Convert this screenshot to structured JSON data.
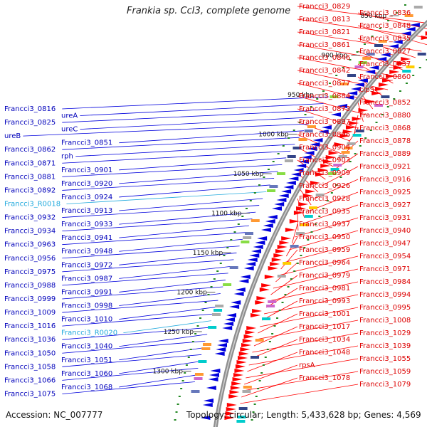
{
  "title": "Frankia sp. CcI3, complete genome",
  "footer": {
    "accession": "Accession: NC_007777",
    "summary": "Topology: circular; Length: 5,433,628 bp; Genes: 4,569"
  },
  "colors": {
    "forward": "#ff0000",
    "reverse": "#0000dd",
    "rna": "#22aadd",
    "tick": "#228822"
  },
  "kbp_ticks": [
    "850 kbp",
    "900 kbp",
    "950 kbp",
    "1000 kbp",
    "1050 kbp",
    "1100 kbp",
    "1150 kbp",
    "1200 kbp",
    "1250 kbp",
    "1300 kbp"
  ],
  "right_labels": [
    "Francci3_0829",
    "Francci3_0836",
    "Francci3_0813",
    "Francci3_0848",
    "Francci3_0821",
    "Francci3_0835",
    "Francci3_0861",
    "Francci3_0827",
    "Francci3_0846",
    "Francci3_0837",
    "Francci3_0842",
    "Francci3_0860",
    "Francci3_0877",
    "clpS",
    "Francci3_0884",
    "Francci3_0852",
    "Francci3_0873",
    "Francci3_0880",
    "Francci3_0897",
    "Francci3_0868",
    "Francci3_0896",
    "Francci3_0878",
    "Francci3_0904",
    "Francci3_0889",
    "Francci3_0903",
    "Francci3_0921",
    "Francci3_0909",
    "Francci3_0916",
    "Francci3_0926",
    "Francci3_0925",
    "Francci3_0928",
    "Francci3_0927",
    "Francci3_0935",
    "Francci3_0931",
    "Francci3_0937",
    "Francci3_0940",
    "Francci3_0950",
    "Francci3_0947",
    "Francci3_0959",
    "Francci3_0954",
    "Francci3_0964",
    "Francci3_0971",
    "Francci3_0979",
    "Francci3_0984",
    "Francci3_0981",
    "Francci3_0994",
    "Francci3_0993",
    "Francci3_0995",
    "Francci3_1001",
    "Francci3_1008",
    "Francci3_1017",
    "Francci3_1029",
    "Francci3_1034",
    "Francci3_1039",
    "Francci3_1048",
    "Francci3_1055",
    "rpsA",
    "Francci3_1059",
    "Francci3_1078",
    "Francci3_1079"
  ],
  "left_labels": [
    "Francci3_0816",
    "ureA",
    "Francci3_0825",
    "ureC",
    "ureB",
    "Francci3_0851",
    "Francci3_0862",
    "rph",
    "Francci3_0871",
    "Francci3_0901",
    "Francci3_0881",
    "Francci3_0920",
    "Francci3_0892",
    "Francci3_0924",
    "Francci3_R0018",
    "Francci3_0913",
    "Francci3_0932",
    "Francci3_0933",
    "Francci3_0934",
    "Francci3_0941",
    "Francci3_0963",
    "Francci3_0948",
    "Francci3_0956",
    "Francci3_0972",
    "Francci3_0975",
    "Francci3_0987",
    "Francci3_0988",
    "Francci3_0991",
    "Francci3_0999",
    "Francci3_0998",
    "Francci3_1009",
    "Francci3_1010",
    "Francci3_1016",
    "Francci3_R0020",
    "Francci3_1036",
    "Francci3_1040",
    "Francci3_1050",
    "Francci3_1051",
    "Francci3_1058",
    "Francci3_1060",
    "Francci3_1066",
    "Francci3_1068",
    "Francci3_1075"
  ]
}
